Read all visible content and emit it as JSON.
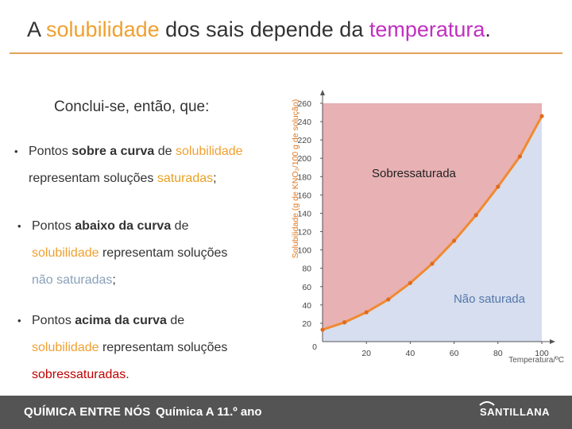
{
  "title": {
    "part1": "A ",
    "part2": "solubilidade",
    "part3": " dos sais depende da ",
    "part4": "temperatura",
    "part5": "."
  },
  "conclusion": "Conclui-se, então, que:",
  "bullets": [
    {
      "line1": {
        "t1": "Pontos ",
        "b1": "sobre a curva",
        "t2": " de ",
        "o1": "solubilidade"
      },
      "line2": {
        "t1": "representam soluções ",
        "s1": "saturadas",
        "t2": ";"
      }
    },
    {
      "line1": {
        "t1": "Pontos ",
        "b1": "abaixo da curva",
        "t2": " de"
      },
      "line2": {
        "o1": "solubilidade",
        "t1": " representam soluções"
      },
      "line3": {
        "n1": "não saturadas",
        "t1": ";"
      }
    },
    {
      "line1": {
        "t1": "Pontos ",
        "b1": "acima da curva",
        "t2": " de"
      },
      "line2": {
        "o1": "solubilidade",
        "t1": " representam soluções"
      },
      "line3": {
        "r1": "sobressaturadas",
        "t1": "."
      }
    }
  ],
  "chart_data": {
    "type": "line",
    "xlabel": "Temperatura/ºC",
    "ylabel": "Solubilidade (g de KNO₃/100 g de solução)",
    "xlim": [
      0,
      100
    ],
    "ylim": [
      0,
      260
    ],
    "xticks": [
      0,
      20,
      40,
      60,
      80,
      100
    ],
    "yticks": [
      20,
      40,
      60,
      80,
      100,
      120,
      140,
      160,
      180,
      200,
      220,
      240,
      260
    ],
    "series": [
      {
        "x": [
          0,
          10,
          20,
          30,
          40,
          50,
          60,
          70,
          80,
          90,
          100
        ],
        "y": [
          13,
          21,
          32,
          46,
          64,
          85,
          110,
          138,
          169,
          202,
          246
        ]
      }
    ],
    "region_labels": {
      "above": "Sobressaturada",
      "below": "Não saturada"
    },
    "colors": {
      "above": "#e8b1b3",
      "below": "#d6deef",
      "curve": "#f08a30",
      "points": "#e06a20"
    }
  },
  "footer": {
    "left": "QUÍMICA ENTRE NÓS",
    "middle": "Química A  11.º ano",
    "brand": "SANTILLANA",
    "colors": {
      "bar": "#545454",
      "text": "#ffffff"
    }
  }
}
